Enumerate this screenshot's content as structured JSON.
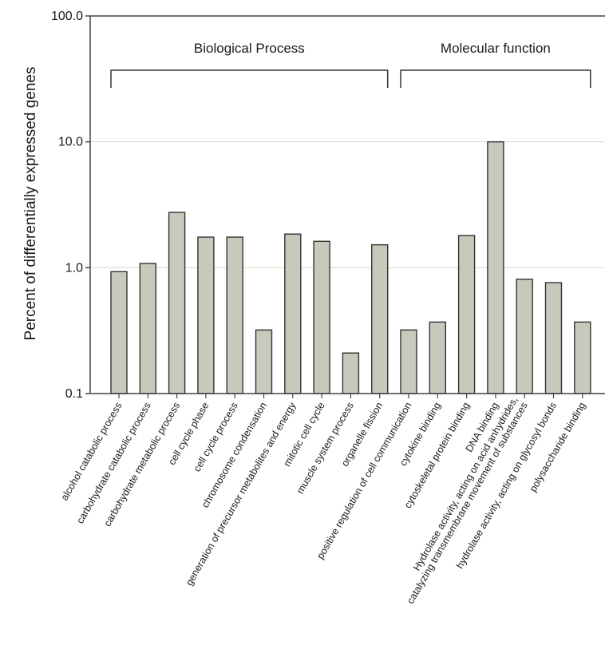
{
  "chart_data": {
    "type": "bar",
    "ylabel": "Percent of differentially expressed genes",
    "yscale": "log",
    "ylim": [
      0.1,
      100
    ],
    "yticks": [
      "0.1",
      "1.0",
      "10.0",
      "100.0"
    ],
    "grid": "horizontal",
    "bar_color": "#c8c8bb",
    "groups": [
      {
        "label": "Biological Process",
        "start_index": 0,
        "end_index": 9
      },
      {
        "label": "Molecular function",
        "start_index": 10,
        "end_index": 16
      }
    ],
    "categories": [
      [
        "alcohol catabolic process"
      ],
      [
        "carbohydrate catabolic process"
      ],
      [
        "carbohydrate metabolic process"
      ],
      [
        "cell cycle phase"
      ],
      [
        "cell cycle process"
      ],
      [
        "chromosome condensation"
      ],
      [
        "generation of precursor metabolites and energy"
      ],
      [
        "mitotic cell cycle"
      ],
      [
        "muscle system process"
      ],
      [
        "organelle fission"
      ],
      [
        "positive regulation of cell communication"
      ],
      [
        "cytokine binding"
      ],
      [
        "cytoskeletal protein binding"
      ],
      [
        "DNA binding"
      ],
      [
        "Hydrolase activity, acting on acid anhydrides,",
        "catalyzing transmembrane movement of substances"
      ],
      [
        "hydrolase activity, acting on glycosyl bonds"
      ],
      [
        "polysaccharide binding"
      ]
    ],
    "values": [
      0.93,
      1.08,
      2.75,
      1.75,
      1.75,
      0.32,
      1.85,
      1.62,
      0.21,
      1.52,
      0.32,
      0.37,
      1.8,
      10.0,
      0.81,
      0.76,
      0.37
    ]
  }
}
